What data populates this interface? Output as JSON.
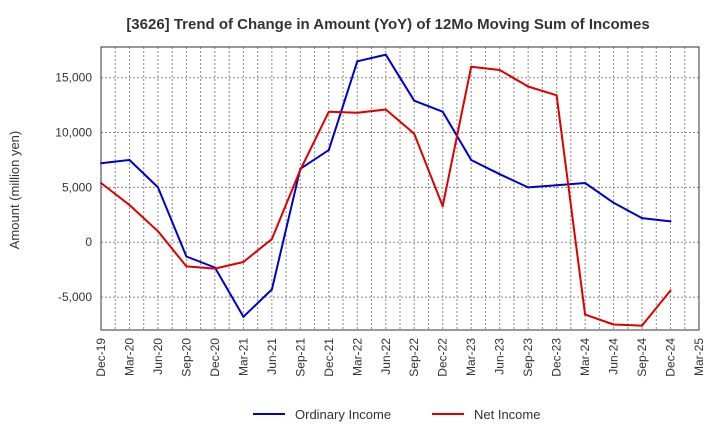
{
  "chart_data": {
    "type": "line",
    "title": "[3626]  Trend of Change in Amount (YoY) of 12Mo Moving Sum of Incomes",
    "xlabel": "",
    "ylabel": "Amount (million yen)",
    "ylim": [
      -8000,
      17800
    ],
    "yticks": [
      -5000,
      0,
      5000,
      10000,
      15000
    ],
    "ytick_labels": [
      "-5,000",
      "0",
      "5,000",
      "10,000",
      "15,000"
    ],
    "categories": [
      "Dec-19",
      "Mar-20",
      "Jun-20",
      "Sep-20",
      "Dec-20",
      "Mar-21",
      "Jun-21",
      "Sep-21",
      "Dec-21",
      "Mar-22",
      "Jun-22",
      "Sep-22",
      "Dec-22",
      "Mar-23",
      "Jun-23",
      "Sep-23",
      "Dec-23",
      "Mar-24",
      "Jun-24",
      "Sep-24",
      "Dec-24",
      "Mar-25"
    ],
    "grid": true,
    "legend_position": "bottom",
    "series": [
      {
        "name": "Ordinary Income",
        "color": "#0000cc",
        "values": [
          7200,
          7500,
          5000,
          -1300,
          -2300,
          -6800,
          -4300,
          6700,
          8400,
          16500,
          17100,
          12900,
          11900,
          7500,
          6200,
          5000,
          5200,
          5400,
          3600,
          2200,
          1900,
          null
        ]
      },
      {
        "name": "Net Income",
        "color": "#dd0000",
        "values": [
          5400,
          3400,
          1000,
          -2200,
          -2400,
          -1800,
          300,
          6600,
          11900,
          11800,
          12100,
          9900,
          3300,
          16000,
          15700,
          14200,
          13400,
          -6600,
          -7500,
          -7600,
          -4400,
          null
        ]
      }
    ]
  }
}
